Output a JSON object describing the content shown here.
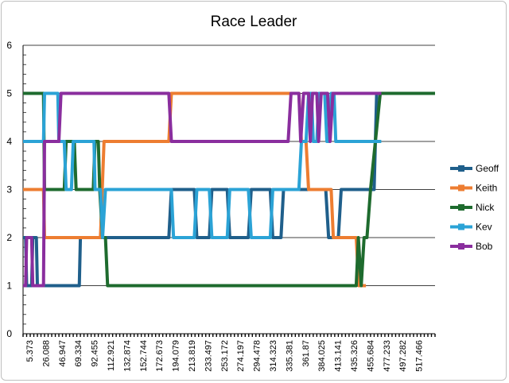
{
  "chart_data": {
    "type": "line",
    "title": "Race Leader",
    "xlabel": "",
    "ylabel": "",
    "ylim": [
      0,
      6
    ],
    "yticks": [
      0,
      1,
      2,
      3,
      4,
      5,
      6
    ],
    "x_tick_labels": [
      "5.373",
      "26.088",
      "46.947",
      "69.334",
      "92.455",
      "112.921",
      "132.874",
      "152.744",
      "172.673",
      "194.079",
      "213.819",
      "233.497",
      "253.172",
      "274.197",
      "294.478",
      "314.323",
      "335.381",
      "361.87",
      "384.025",
      "413.141",
      "435.326",
      "455.684",
      "477.233",
      "497.282",
      "517.466"
    ],
    "grid": "horizontal",
    "legend": "right",
    "x_domain": [
      0,
      115
    ],
    "series": [
      {
        "name": "Geoff",
        "color": "#1f5f8b",
        "points": [
          [
            0,
            2
          ],
          [
            0.7,
            2
          ],
          [
            1,
            1
          ],
          [
            2.4,
            1
          ],
          [
            2.7,
            2
          ],
          [
            3.7,
            2
          ],
          [
            4,
            1
          ],
          [
            15.7,
            1
          ],
          [
            16,
            2
          ],
          [
            21.6,
            2
          ],
          [
            22.6,
            2
          ],
          [
            40.7,
            2
          ],
          [
            41.4,
            3
          ],
          [
            47.8,
            3
          ],
          [
            48.5,
            2
          ],
          [
            52,
            2
          ],
          [
            52.7,
            3
          ],
          [
            57,
            3
          ],
          [
            57.7,
            2
          ],
          [
            62.9,
            2
          ],
          [
            63.7,
            3
          ],
          [
            69,
            3
          ],
          [
            69.7,
            2
          ],
          [
            72,
            2
          ],
          [
            72.7,
            3
          ],
          [
            84.5,
            3
          ],
          [
            85.3,
            2
          ],
          [
            88,
            2
          ],
          [
            88.8,
            3
          ],
          [
            95,
            3
          ],
          [
            95.7,
            3
          ],
          [
            98,
            3
          ],
          [
            98.7,
            5
          ],
          [
            115,
            5
          ]
        ]
      },
      {
        "name": "Keith",
        "color": "#ed7d31",
        "points": [
          [
            0,
            3
          ],
          [
            5.7,
            3
          ],
          [
            6,
            2
          ],
          [
            21.6,
            2
          ],
          [
            22.6,
            4
          ],
          [
            40.7,
            4
          ],
          [
            41.4,
            5
          ],
          [
            74,
            5
          ],
          [
            74.8,
            5
          ],
          [
            77,
            5
          ],
          [
            77.7,
            4
          ],
          [
            79,
            4
          ],
          [
            79.7,
            3
          ],
          [
            86,
            3
          ],
          [
            86.6,
            2
          ],
          [
            93,
            2
          ],
          [
            93.7,
            1
          ],
          [
            95.7,
            1
          ]
        ]
      },
      {
        "name": "Nick",
        "color": "#1e6b2e",
        "points": [
          [
            0,
            5
          ],
          [
            5.7,
            5
          ],
          [
            6,
            3
          ],
          [
            11.5,
            3
          ],
          [
            12,
            4
          ],
          [
            14.3,
            4
          ],
          [
            14.8,
            3
          ],
          [
            19.6,
            3
          ],
          [
            20.1,
            4
          ],
          [
            21,
            4
          ],
          [
            21.4,
            3
          ],
          [
            22.2,
            2
          ],
          [
            23,
            2
          ],
          [
            23.6,
            1
          ],
          [
            28,
            1
          ],
          [
            40,
            1
          ],
          [
            93,
            1
          ],
          [
            93.6,
            2
          ],
          [
            94.4,
            1
          ],
          [
            95.2,
            2
          ],
          [
            96,
            2
          ],
          [
            97,
            3
          ],
          [
            99.7,
            5
          ],
          [
            115,
            5
          ]
        ]
      },
      {
        "name": "Kev",
        "color": "#2ba3d6",
        "points": [
          [
            0,
            4
          ],
          [
            5.7,
            4
          ],
          [
            6,
            5
          ],
          [
            9.7,
            5
          ],
          [
            10,
            4
          ],
          [
            11.5,
            4
          ],
          [
            12,
            3
          ],
          [
            13.5,
            3
          ],
          [
            14,
            4
          ],
          [
            19.8,
            4
          ],
          [
            20.1,
            3
          ],
          [
            21.6,
            3
          ],
          [
            22.2,
            2
          ],
          [
            23,
            3
          ],
          [
            41.4,
            3
          ],
          [
            42,
            2
          ],
          [
            47.8,
            2
          ],
          [
            48.5,
            3
          ],
          [
            52,
            3
          ],
          [
            52.7,
            2
          ],
          [
            57,
            2
          ],
          [
            57.7,
            3
          ],
          [
            62.9,
            3
          ],
          [
            63.7,
            2
          ],
          [
            69,
            2
          ],
          [
            69.7,
            3
          ],
          [
            77,
            3
          ],
          [
            77.7,
            4
          ],
          [
            79,
            4
          ],
          [
            79.7,
            5
          ],
          [
            80.5,
            5
          ],
          [
            81,
            4
          ],
          [
            82,
            4
          ],
          [
            82.6,
            5
          ],
          [
            84.2,
            5
          ],
          [
            84.8,
            4
          ],
          [
            85.5,
            4
          ],
          [
            86,
            5
          ],
          [
            86.8,
            5
          ],
          [
            87.3,
            4
          ],
          [
            100,
            4
          ]
        ]
      },
      {
        "name": "Bob",
        "color": "#8a2e9e",
        "points": [
          [
            0,
            1
          ],
          [
            0.7,
            1
          ],
          [
            1,
            2
          ],
          [
            2.4,
            2
          ],
          [
            2.7,
            1
          ],
          [
            5.7,
            1
          ],
          [
            6,
            4
          ],
          [
            10,
            4
          ],
          [
            10.6,
            5
          ],
          [
            40.7,
            5
          ],
          [
            41.4,
            4
          ],
          [
            74,
            4
          ],
          [
            74.8,
            5
          ],
          [
            77,
            5
          ],
          [
            77.5,
            4
          ],
          [
            78.3,
            5
          ],
          [
            79.7,
            5
          ],
          [
            80.2,
            4
          ],
          [
            80.8,
            5
          ],
          [
            82,
            5
          ],
          [
            82.5,
            4
          ],
          [
            83.2,
            5
          ],
          [
            85,
            5
          ],
          [
            85.7,
            4
          ],
          [
            86.5,
            5
          ],
          [
            100,
            5
          ]
        ]
      }
    ]
  }
}
